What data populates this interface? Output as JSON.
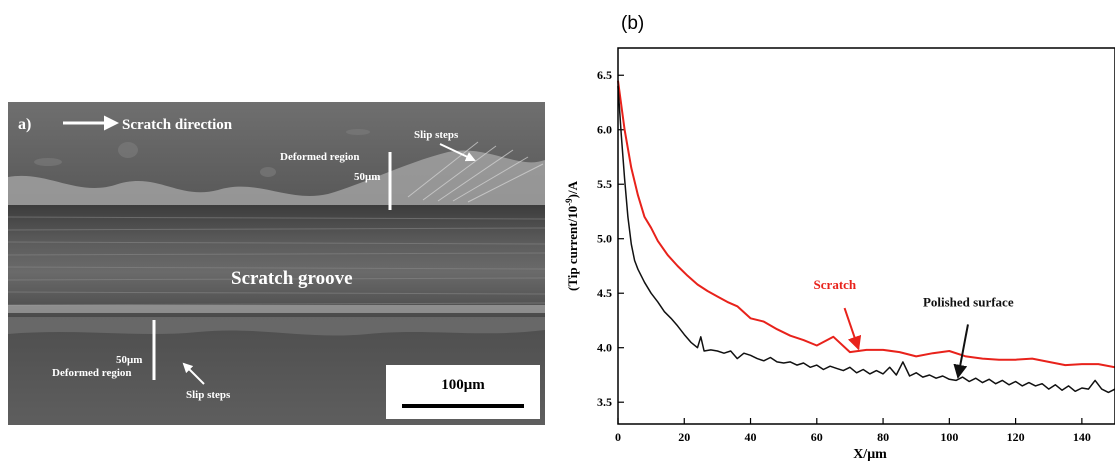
{
  "sem_image": {
    "panel_label": "a)",
    "direction_label": "Scratch direction",
    "groove_label": "Scratch groove",
    "slip_steps_top": "Slip steps",
    "slip_steps_bottom": "Slip steps",
    "deformed_top_label": "Deformed region",
    "deformed_top_width": "50μm",
    "deformed_bottom_width": "50μm",
    "deformed_bottom_label": "Deformed region",
    "scale_bar_label": "100μm"
  },
  "chart_data": {
    "type": "line",
    "panel_label": "(b)",
    "xlabel": "X/μm",
    "ylabel_prefix": "(Tip current/10",
    "ylabel_exp": "-9",
    "ylabel_suffix": ")/A",
    "xlim": [
      0,
      150
    ],
    "ylim": [
      3.3,
      6.75
    ],
    "xticks": [
      0,
      20,
      40,
      60,
      80,
      100,
      120,
      140
    ],
    "yticks": [
      3.5,
      4.0,
      4.5,
      5.0,
      5.5,
      6.0,
      6.5
    ],
    "series": [
      {
        "name": "Scratch",
        "color": "#e8221b",
        "x": [
          0,
          2,
          4,
          6,
          8,
          10,
          12,
          15,
          18,
          21,
          24,
          27,
          30,
          33,
          36,
          40,
          44,
          48,
          52,
          56,
          60,
          65,
          70,
          75,
          80,
          85,
          90,
          95,
          100,
          105,
          110,
          115,
          120,
          125,
          130,
          135,
          140,
          145,
          150
        ],
        "y": [
          6.45,
          6.0,
          5.65,
          5.4,
          5.2,
          5.1,
          4.98,
          4.85,
          4.75,
          4.66,
          4.58,
          4.52,
          4.47,
          4.42,
          4.38,
          4.27,
          4.24,
          4.17,
          4.11,
          4.07,
          4.02,
          4.1,
          3.96,
          3.98,
          3.98,
          3.96,
          3.92,
          3.95,
          3.97,
          3.92,
          3.9,
          3.89,
          3.89,
          3.9,
          3.87,
          3.84,
          3.85,
          3.85,
          3.82
        ]
      },
      {
        "name": "Polished surface",
        "color": "#111111",
        "x": [
          0,
          1,
          2,
          3,
          4,
          5,
          6,
          8,
          10,
          12,
          14,
          16,
          18,
          20,
          22,
          24,
          25,
          26,
          28,
          30,
          32,
          34,
          36,
          38,
          40,
          42,
          44,
          46,
          48,
          50,
          52,
          54,
          56,
          58,
          60,
          62,
          64,
          66,
          68,
          70,
          72,
          74,
          76,
          78,
          80,
          82,
          84,
          86,
          88,
          90,
          92,
          94,
          96,
          98,
          100,
          102,
          104,
          106,
          108,
          110,
          112,
          114,
          116,
          118,
          120,
          122,
          124,
          126,
          128,
          130,
          132,
          134,
          136,
          138,
          140,
          142,
          144,
          146,
          148,
          150
        ],
        "y": [
          6.4,
          5.95,
          5.55,
          5.2,
          4.95,
          4.8,
          4.72,
          4.6,
          4.5,
          4.42,
          4.33,
          4.27,
          4.2,
          4.12,
          4.05,
          4.0,
          4.1,
          3.97,
          3.98,
          3.97,
          3.95,
          3.97,
          3.9,
          3.95,
          3.93,
          3.9,
          3.88,
          3.91,
          3.87,
          3.86,
          3.87,
          3.84,
          3.86,
          3.82,
          3.84,
          3.8,
          3.83,
          3.81,
          3.79,
          3.82,
          3.77,
          3.8,
          3.76,
          3.79,
          3.76,
          3.82,
          3.75,
          3.87,
          3.74,
          3.77,
          3.73,
          3.75,
          3.72,
          3.74,
          3.71,
          3.7,
          3.73,
          3.69,
          3.72,
          3.68,
          3.71,
          3.67,
          3.7,
          3.66,
          3.69,
          3.65,
          3.68,
          3.65,
          3.67,
          3.62,
          3.66,
          3.61,
          3.65,
          3.6,
          3.63,
          3.62,
          3.7,
          3.62,
          3.59,
          3.62
        ]
      }
    ],
    "annotations": [
      {
        "text": "Scratch",
        "color": "#e8221b",
        "x_data": 72,
        "y_data": 3.96
      },
      {
        "text": "Polished surface",
        "color": "#111111",
        "x_data": 102,
        "y_data": 3.7
      }
    ]
  }
}
